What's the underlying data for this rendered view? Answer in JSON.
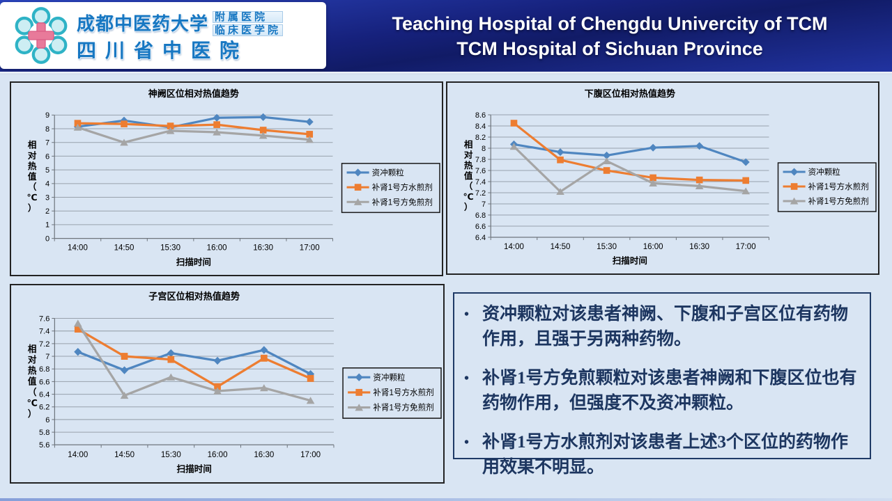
{
  "header": {
    "logo": {
      "university": "成都中医药大学",
      "affiliated_1": "附属医院",
      "affiliated_2": "临床医学院",
      "hospital": "四川省中医院"
    },
    "title_line1": "Teaching Hospital of Chengdu Univercity of TCM",
    "title_line2": "TCM Hospital of Sichuan Province"
  },
  "chart_data": [
    {
      "type": "line",
      "title": "神阙区位相对热值趋势",
      "xlabel": "扫描时间",
      "ylabel": "相对热值（℃）",
      "categories": [
        "14:00",
        "14:50",
        "15:30",
        "16:00",
        "16:30",
        "17:00"
      ],
      "series": [
        {
          "name": "资冲颗粒",
          "marker": "diamond",
          "color": "#4f86c0",
          "values": [
            8.15,
            8.6,
            8.1,
            8.8,
            8.85,
            8.5
          ]
        },
        {
          "name": "补肾1号方水煎剂",
          "marker": "square",
          "color": "#ed7d31",
          "values": [
            8.4,
            8.35,
            8.2,
            8.3,
            7.9,
            7.6
          ]
        },
        {
          "name": "补肾1号方免煎剂",
          "marker": "triangle",
          "color": "#a5a5a5",
          "values": [
            8.1,
            7.0,
            7.85,
            7.75,
            7.5,
            7.2
          ]
        }
      ],
      "ylim": [
        0,
        9
      ],
      "ytick_step": 1,
      "grid": true,
      "legend_position": "right"
    },
    {
      "type": "line",
      "title": "下腹区位相对热值趋势",
      "xlabel": "扫描时间",
      "ylabel": "相对热值（℃）",
      "categories": [
        "14:00",
        "14:50",
        "15:30",
        "16:00",
        "16:30",
        "17:00"
      ],
      "series": [
        {
          "name": "资冲颗粒",
          "marker": "diamond",
          "color": "#4f86c0",
          "values": [
            8.07,
            7.93,
            7.87,
            8.01,
            8.04,
            7.75
          ]
        },
        {
          "name": "补肾1号方水煎剂",
          "marker": "square",
          "color": "#ed7d31",
          "values": [
            8.45,
            7.79,
            7.6,
            7.47,
            7.43,
            7.42
          ]
        },
        {
          "name": "补肾1号方免煎剂",
          "marker": "triangle",
          "color": "#a5a5a5",
          "values": [
            8.03,
            7.22,
            7.77,
            7.37,
            7.32,
            7.23
          ]
        }
      ],
      "ylim": [
        6.4,
        8.6
      ],
      "ytick_step": 0.2,
      "grid": true,
      "legend_position": "right"
    },
    {
      "type": "line",
      "title": "子宫区位相对热值趋势",
      "xlabel": "扫描时间",
      "ylabel": "相对热值（℃）",
      "categories": [
        "14:00",
        "14:50",
        "15:30",
        "16:00",
        "16:30",
        "17:00"
      ],
      "series": [
        {
          "name": "资冲颗粒",
          "marker": "diamond",
          "color": "#4f86c0",
          "values": [
            7.07,
            6.78,
            7.05,
            6.93,
            7.1,
            6.72
          ]
        },
        {
          "name": "补肾1号方水煎剂",
          "marker": "square",
          "color": "#ed7d31",
          "values": [
            7.43,
            7.0,
            6.95,
            6.52,
            6.97,
            6.65
          ]
        },
        {
          "name": "补肾1号方免煎剂",
          "marker": "triangle",
          "color": "#a5a5a5",
          "values": [
            7.52,
            6.38,
            6.67,
            6.45,
            6.5,
            6.3
          ]
        }
      ],
      "ylim": [
        5.6,
        7.6
      ],
      "ytick_step": 0.2,
      "grid": true,
      "legend_position": "right"
    }
  ],
  "notes": {
    "bullets": [
      "资冲颗粒对该患者神阙、下腹和子宫区位有药物作用，且强于另两种药物。",
      "补肾1号方免煎颗粒对该患者神阙和下腹区位也有药物作用，但强度不及资冲颗粒。",
      "补肾1号方水煎剂对该患者上述3个区位的药物作用效果不明显。"
    ]
  },
  "theme": {
    "slide_bg": "#d9e5f3",
    "header_blue_dark": "#16217c",
    "header_blue_light": "#2c45bd",
    "logo_text_blue": "#1777c2",
    "logo_cross_pink": "#e87a9a",
    "logo_petal_teal": "#2fb3c6",
    "notes_text": "#1d3660",
    "series_blue": "#4f86c0",
    "series_orange": "#ed7d31",
    "series_gray": "#a5a5a5"
  }
}
